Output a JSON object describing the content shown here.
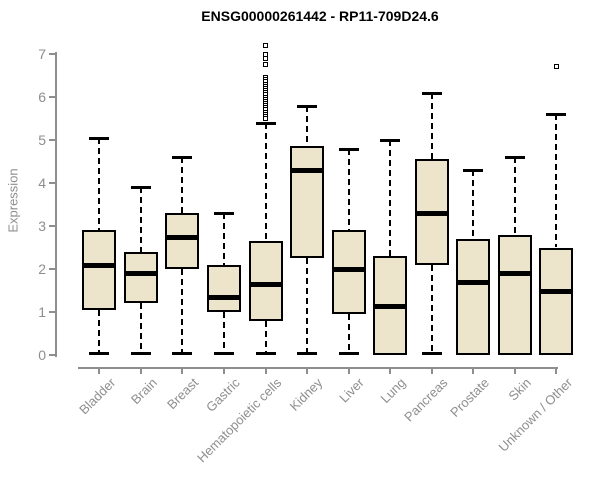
{
  "title": "ENSG00000261442 - RP11-709D24.6",
  "chart_data": {
    "type": "boxplot",
    "title": "ENSG00000261442 - RP11-709D24.6",
    "xlabel": "",
    "ylabel": "Expression",
    "ylim": [
      0,
      7.3
    ],
    "yticks": [
      0,
      1,
      2,
      3,
      4,
      5,
      6,
      7
    ],
    "grid": false,
    "legend": "none",
    "categories": [
      "Bladder",
      "Brain",
      "Breast",
      "Gastric",
      "Hematopoietic cells",
      "Kidney",
      "Liver",
      "Lung",
      "Pancreas",
      "Prostate",
      "Skin",
      "Unknown / Other"
    ],
    "boxes": [
      {
        "category": "Bladder",
        "whisker_low": 0.05,
        "q1": 1.05,
        "median": 2.1,
        "q3": 2.9,
        "whisker_high": 5.05,
        "outliers": []
      },
      {
        "category": "Brain",
        "whisker_low": 0.05,
        "q1": 1.2,
        "median": 1.9,
        "q3": 2.4,
        "whisker_high": 3.9,
        "outliers": []
      },
      {
        "category": "Breast",
        "whisker_low": 0.05,
        "q1": 2.0,
        "median": 2.75,
        "q3": 3.3,
        "whisker_high": 4.6,
        "outliers": []
      },
      {
        "category": "Gastric",
        "whisker_low": 0.05,
        "q1": 1.0,
        "median": 1.35,
        "q3": 2.1,
        "whisker_high": 3.3,
        "outliers": []
      },
      {
        "category": "Hematopoietic cells",
        "whisker_low": 0.05,
        "q1": 0.8,
        "median": 1.65,
        "q3": 2.65,
        "whisker_high": 5.4,
        "outliers": [
          7.2,
          7.0,
          6.9,
          6.75,
          6.45,
          6.4,
          6.35,
          6.3,
          6.25,
          6.2,
          6.15,
          6.1,
          6.05,
          6.0,
          5.95,
          5.9,
          5.85,
          5.8,
          5.75,
          5.7,
          5.65,
          5.6,
          5.55,
          5.5
        ]
      },
      {
        "category": "Kidney",
        "whisker_low": 0.05,
        "q1": 2.25,
        "median": 4.3,
        "q3": 4.85,
        "whisker_high": 5.8,
        "outliers": []
      },
      {
        "category": "Liver",
        "whisker_low": 0.05,
        "q1": 0.95,
        "median": 2.0,
        "q3": 2.9,
        "whisker_high": 4.8,
        "outliers": []
      },
      {
        "category": "Lung",
        "whisker_low": 0.0,
        "q1": 0.0,
        "median": 1.15,
        "q3": 2.3,
        "whisker_high": 5.0,
        "outliers": []
      },
      {
        "category": "Pancreas",
        "whisker_low": 0.05,
        "q1": 2.1,
        "median": 3.3,
        "q3": 4.55,
        "whisker_high": 6.1,
        "outliers": []
      },
      {
        "category": "Prostate",
        "whisker_low": 0.0,
        "q1": 0.0,
        "median": 1.7,
        "q3": 2.7,
        "whisker_high": 4.3,
        "outliers": []
      },
      {
        "category": "Skin",
        "whisker_low": 0.0,
        "q1": 0.0,
        "median": 1.9,
        "q3": 2.8,
        "whisker_high": 4.6,
        "outliers": []
      },
      {
        "category": "Unknown / Other",
        "whisker_low": 0.0,
        "q1": 0.0,
        "median": 1.5,
        "q3": 2.5,
        "whisker_high": 5.6,
        "outliers": [
          6.7
        ]
      }
    ],
    "colors": {
      "box_fill": "#ECE5CB",
      "box_border": "#000000",
      "median": "#000000",
      "whisker": "#000000",
      "axis": "#8E8E8E",
      "tick_label": "#8E8E8E",
      "title": "#000000",
      "background": "#FFFFFF"
    }
  }
}
